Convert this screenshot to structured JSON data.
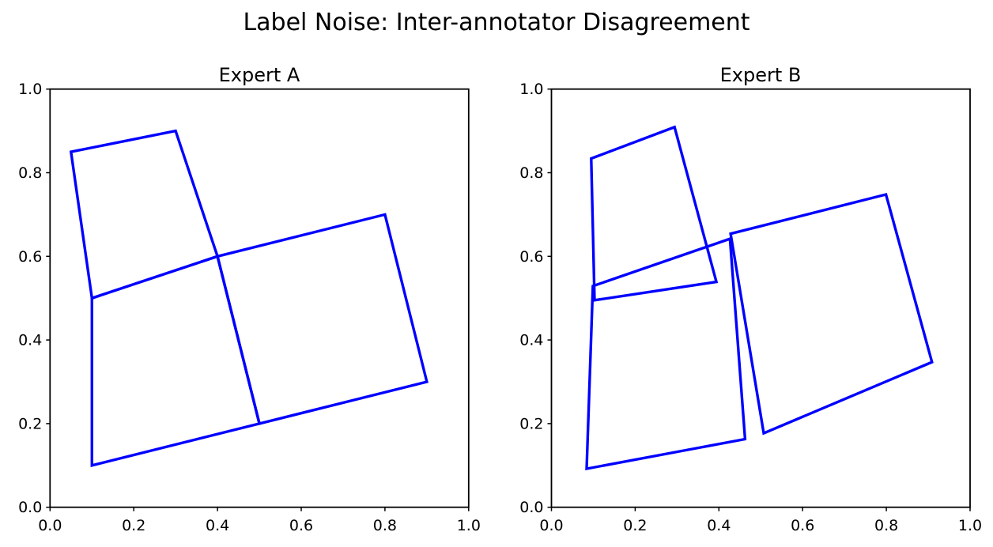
{
  "figure": {
    "background": "#ffffff"
  },
  "chart_data": {
    "type": "line",
    "title": "Label Noise: Inter-annotator Disagreement",
    "line_color": "#0000ff",
    "axis_color": "#000000",
    "text_color": "#000000",
    "grid": false,
    "legend": "none",
    "xlim": [
      0.0,
      1.0
    ],
    "ylim": [
      0.0,
      1.0
    ],
    "tick_values": [
      0.0,
      0.2,
      0.4,
      0.6,
      0.8,
      1.0
    ],
    "tick_labels": [
      "0.0",
      "0.2",
      "0.4",
      "0.6",
      "0.8",
      "1.0"
    ],
    "panels": [
      {
        "title": "Expert A",
        "polygons": [
          [
            [
              0.05,
              0.85
            ],
            [
              0.3,
              0.9
            ],
            [
              0.4,
              0.6
            ],
            [
              0.1,
              0.5
            ]
          ],
          [
            [
              0.1,
              0.5
            ],
            [
              0.4,
              0.6
            ],
            [
              0.5,
              0.2
            ],
            [
              0.1,
              0.1
            ]
          ],
          [
            [
              0.4,
              0.6
            ],
            [
              0.8,
              0.7
            ],
            [
              0.9,
              0.3
            ],
            [
              0.5,
              0.2
            ]
          ]
        ]
      },
      {
        "title": "Expert B",
        "polygons": [
          [
            [
              0.095,
              0.834
            ],
            [
              0.294,
              0.909
            ],
            [
              0.394,
              0.539
            ],
            [
              0.103,
              0.495
            ]
          ],
          [
            [
              0.099,
              0.529
            ],
            [
              0.4265,
              0.642
            ],
            [
              0.4625,
              0.163
            ],
            [
              0.084,
              0.092
            ]
          ],
          [
            [
              0.428,
              0.654
            ],
            [
              0.799,
              0.748
            ],
            [
              0.909,
              0.347
            ],
            [
              0.507,
              0.177
            ]
          ]
        ]
      }
    ]
  }
}
